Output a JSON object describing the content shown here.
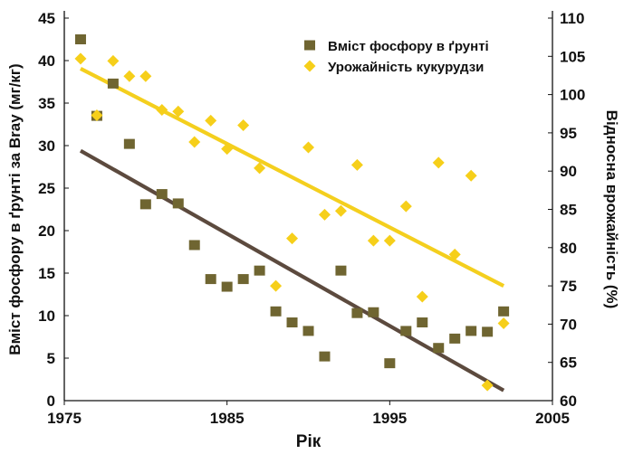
{
  "chart_data": {
    "type": "scatter",
    "title": "",
    "xlabel": "Рік",
    "ylabel_left": "Вміст фосфору в ґрунті за Bray (мг/кг)",
    "ylabel_right": "Відносна врожайність (%)",
    "xlim": [
      1975,
      2005
    ],
    "ylim_left": [
      0,
      45
    ],
    "ylim_right": [
      60,
      110
    ],
    "x_ticks": [
      1975,
      1985,
      1995,
      2005
    ],
    "y_ticks_left": [
      0,
      5,
      10,
      15,
      20,
      25,
      30,
      35,
      40,
      45
    ],
    "y_ticks_right": [
      60,
      65,
      70,
      75,
      80,
      85,
      90,
      95,
      100,
      105,
      110
    ],
    "grid": false,
    "legend_position": "top-right",
    "series": [
      {
        "name": "Вміст фосфору в ґрунті",
        "axis": "left",
        "marker": "square",
        "color": "#6f6531",
        "x": [
          1976,
          1977,
          1978,
          1979,
          1980,
          1981,
          1982,
          1983,
          1984,
          1985,
          1986,
          1987,
          1988,
          1989,
          1990,
          1991,
          1992,
          1993,
          1994,
          1995,
          1996,
          1997,
          1998,
          1999,
          2000,
          2001,
          2002
        ],
        "y": [
          42.5,
          33.5,
          37.3,
          30.2,
          23.1,
          24.3,
          23.2,
          18.3,
          14.3,
          13.4,
          14.3,
          15.3,
          10.5,
          9.2,
          8.2,
          5.2,
          15.3,
          10.3,
          10.4,
          4.4,
          8.2,
          9.2,
          6.2,
          7.3,
          8.2,
          8.1,
          10.5
        ],
        "trend": {
          "x": [
            1976,
            2002
          ],
          "y": [
            29.4,
            1.2
          ],
          "color": "#5c4a3e"
        }
      },
      {
        "name": "Урожайність кукурудзи",
        "axis": "right",
        "marker": "diamond",
        "color": "#f6cf1a",
        "x": [
          1976,
          1977,
          1978,
          1979,
          1980,
          1981,
          1982,
          1983,
          1984,
          1985,
          1986,
          1987,
          1988,
          1989,
          1990,
          1991,
          1992,
          1993,
          1994,
          1995,
          1996,
          1997,
          1998,
          1999,
          2000,
          2001,
          2002
        ],
        "y": [
          104.7,
          97.3,
          104.4,
          102.4,
          102.4,
          98.0,
          97.8,
          93.8,
          96.6,
          92.9,
          96.0,
          90.4,
          75.0,
          81.2,
          93.1,
          84.3,
          84.8,
          90.8,
          80.9,
          80.9,
          85.4,
          73.6,
          91.1,
          79.1,
          89.4,
          62.0,
          70.1
        ],
        "trend": {
          "x": [
            1976,
            2002
          ],
          "y": [
            103.4,
            75.0
          ],
          "color": "#f4cf1e"
        }
      }
    ]
  }
}
